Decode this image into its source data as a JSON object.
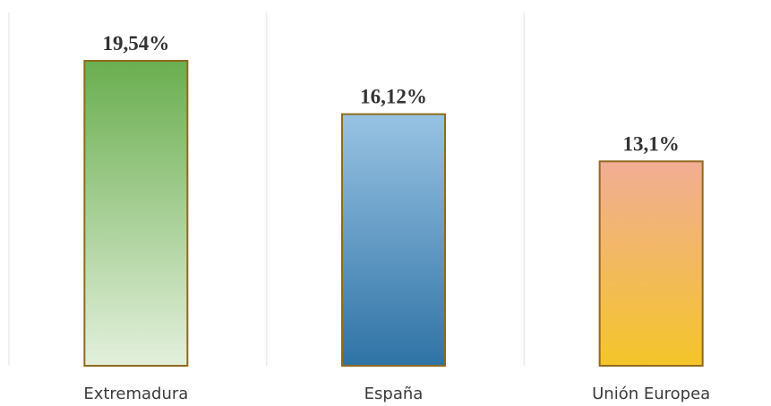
{
  "chart_data": {
    "type": "bar",
    "categories": [
      "Extremadura",
      "España",
      "Unión Europea"
    ],
    "values": [
      19.54,
      16.12,
      13.1
    ],
    "data_labels": [
      "19,54%",
      "16,12%",
      "13,1%"
    ],
    "title": "",
    "xlabel": "",
    "ylabel": "",
    "ylim": [
      0,
      20.8
    ],
    "grid": false,
    "legend": "none",
    "bar_gradients": [
      {
        "top": "#6aae4f",
        "bottom": "#e3f0dc"
      },
      {
        "top": "#98c3e3",
        "bottom": "#2f73a6"
      },
      {
        "top": "#f2ad94",
        "bottom": "#f4c52a"
      }
    ],
    "bar_border_color": "#8f6a1e",
    "divider_color": "#ececec"
  }
}
